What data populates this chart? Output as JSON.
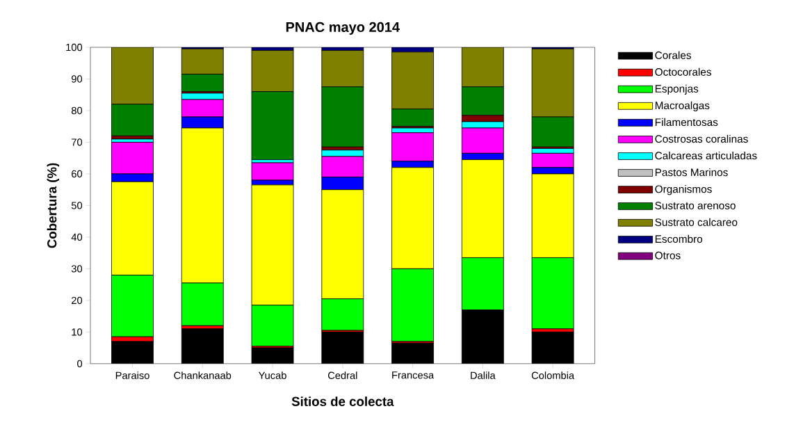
{
  "chart_data": {
    "type": "bar",
    "stacked": true,
    "title": "PNAC mayo 2014",
    "xlabel": "Sitios de colecta",
    "ylabel": "Cobertura (%)",
    "categories": [
      "Paraiso",
      "Chankanaab",
      "Yucab",
      "Cedral",
      "Francesa",
      "Dalila",
      "Colombia"
    ],
    "ylim": [
      0,
      100
    ],
    "yticks": [
      0,
      10,
      20,
      30,
      40,
      50,
      60,
      70,
      80,
      90,
      100
    ],
    "legend": "right",
    "series": [
      {
        "name": "Corales",
        "color": "#000000",
        "values": [
          7,
          11,
          5,
          10,
          6.5,
          17,
          10
        ]
      },
      {
        "name": "Octocorales",
        "color": "#ff0000",
        "values": [
          1.5,
          1,
          0.5,
          0.5,
          0.5,
          0,
          1
        ]
      },
      {
        "name": "Esponjas",
        "color": "#00ff00",
        "values": [
          19.5,
          13.5,
          13,
          10,
          23,
          16.5,
          22.5
        ]
      },
      {
        "name": "Macroalgas",
        "color": "#ffff00",
        "values": [
          29.5,
          49,
          38,
          34.5,
          32,
          31,
          26.5
        ]
      },
      {
        "name": "Filamentosas",
        "color": "#0000ff",
        "values": [
          2.5,
          3.5,
          1.5,
          4,
          2,
          2,
          2
        ]
      },
      {
        "name": "Costrosas coralinas",
        "color": "#ff00ff",
        "values": [
          10,
          5.5,
          5.5,
          6.5,
          9,
          8,
          4.5
        ]
      },
      {
        "name": "Calcareas articuladas",
        "color": "#00ffff",
        "values": [
          1,
          2,
          1,
          2,
          1.5,
          2,
          1.5
        ]
      },
      {
        "name": "Pastos Marinos",
        "color": "#c0c0c0",
        "values": [
          0,
          0,
          0,
          0,
          0,
          0,
          0
        ]
      },
      {
        "name": "Organismos",
        "color": "#800000",
        "values": [
          1,
          0.5,
          0,
          1,
          0.5,
          2,
          0.5
        ]
      },
      {
        "name": "Sustrato arenoso",
        "color": "#008000",
        "values": [
          10,
          5.5,
          21.5,
          19,
          5.5,
          9,
          9.5
        ]
      },
      {
        "name": "Sustrato calcareo",
        "color": "#808000",
        "values": [
          18,
          8,
          13,
          11.5,
          18,
          12.5,
          21.5
        ]
      },
      {
        "name": "Escombro",
        "color": "#000080",
        "values": [
          0,
          0.5,
          1,
          1,
          1.5,
          0,
          0.5
        ]
      },
      {
        "name": "Otros",
        "color": "#800080",
        "values": [
          0,
          0,
          0,
          0,
          0,
          0,
          0
        ]
      }
    ]
  }
}
